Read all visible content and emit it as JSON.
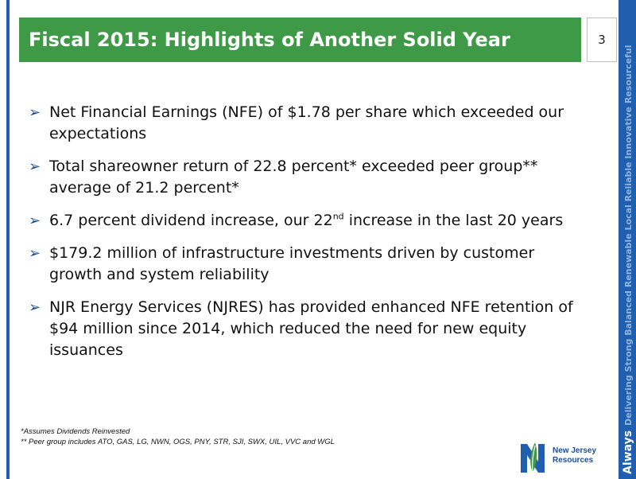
{
  "slide": {
    "title": "Fiscal 2015: Highlights of Another Solid Year",
    "page_number": "3"
  },
  "side_banner": {
    "lead": "Always",
    "rest": "Delivering Strong Balanced Renewable Local Reliable Innovative Resourceful"
  },
  "bullets": [
    {
      "text": "Net Financial Earnings (NFE) of $1.78 per share which exceeded our expectations"
    },
    {
      "text": "Total shareowner return of 22.8 percent* exceeded peer group** average of 21.2 percent*"
    },
    {
      "text_before": "6.7 percent dividend increase, our 22",
      "sup": "nd",
      "text_after": " increase in the last 20 years"
    },
    {
      "text": "$179.2 million of infrastructure investments driven by customer growth and system reliability"
    },
    {
      "text": "NJR Energy Services (NJRES) has provided enhanced NFE retention of $94 million since 2014, which reduced the need for new equity issuances"
    }
  ],
  "footnotes": {
    "line1": "*Assumes Dividends Reinvested",
    "line2": "** Peer group includes ATO, GAS, LG, NWN, OGS, PNY, STR, SJI, SWX, UIL, VVC and WGL"
  },
  "logo": {
    "line1": "New Jersey",
    "line2": "Resources"
  },
  "colors": {
    "title_bar": "#3f9a47",
    "accent_blue": "#1f5fae",
    "arrow": "#1c4f8f"
  },
  "icons": {
    "bullet": "arrow-bullet-icon",
    "logo": "njr-logo-icon"
  }
}
